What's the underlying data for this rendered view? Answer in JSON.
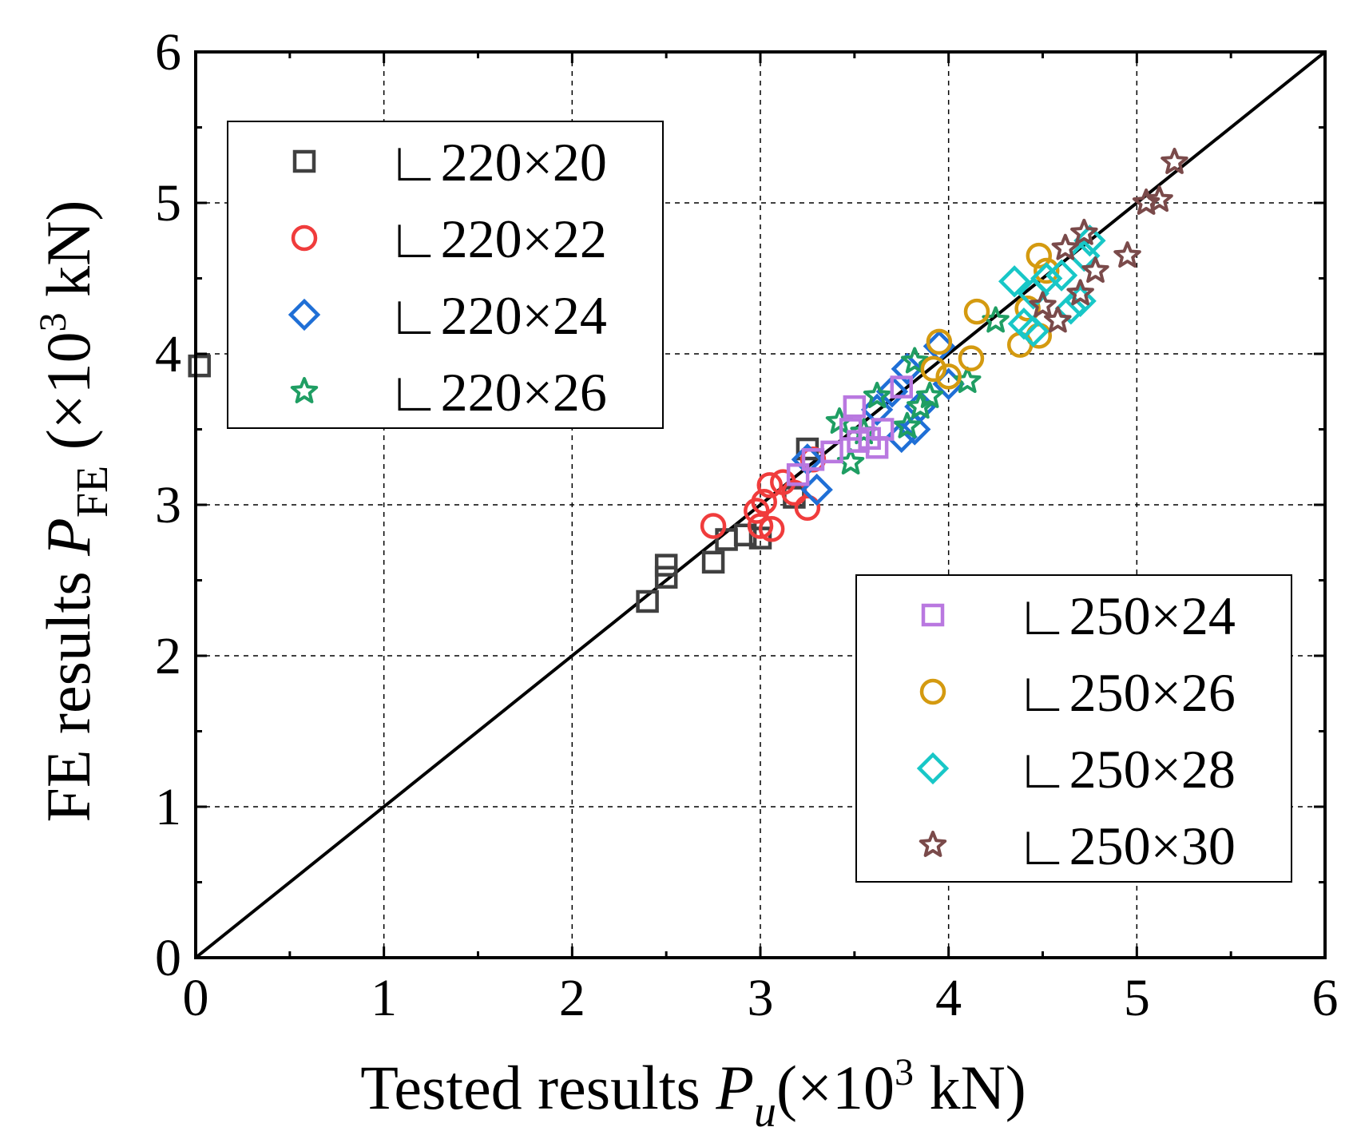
{
  "chart_data": {
    "type": "scatter",
    "xlabel": {
      "text": "Tested results ",
      "var": "P",
      "sub": "u",
      "unit": "(×10",
      "exp": "3",
      "unit_end": " kN)"
    },
    "ylabel": {
      "text": "FE results ",
      "var": "P",
      "sub": "FE",
      "unit": " (×10",
      "exp": "3",
      "unit_end": " kN)"
    },
    "xlim": [
      0,
      6
    ],
    "ylim": [
      0,
      6
    ],
    "x_ticks": [
      "0",
      "1",
      "2",
      "3",
      "4",
      "5",
      "6"
    ],
    "y_ticks": [
      "0",
      "1",
      "2",
      "3",
      "4",
      "5",
      "6"
    ],
    "grid": true,
    "reference_line": {
      "x": [
        0,
        6
      ],
      "y": [
        0,
        6
      ],
      "color": "#000000"
    },
    "legends": [
      {
        "placement": "top-left",
        "entries": [
          0,
          1,
          2,
          3
        ]
      },
      {
        "placement": "bottom-right",
        "entries": [
          4,
          5,
          6,
          7
        ]
      }
    ],
    "series": [
      {
        "name": "∟220×20",
        "marker": "square",
        "color": "#404040",
        "points": [
          [
            2.4,
            2.36
          ],
          [
            2.5,
            2.52
          ],
          [
            2.5,
            2.6
          ],
          [
            2.75,
            2.62
          ],
          [
            2.82,
            2.77
          ],
          [
            2.92,
            2.8
          ],
          [
            3.0,
            2.78
          ],
          [
            3.18,
            3.05
          ],
          [
            3.25,
            3.37
          ],
          [
            0.02,
            3.92
          ]
        ]
      },
      {
        "name": "∟220×22",
        "marker": "circle",
        "color": "#f03c3c",
        "points": [
          [
            2.75,
            2.86
          ],
          [
            2.98,
            2.96
          ],
          [
            3.0,
            2.86
          ],
          [
            3.02,
            3.02
          ],
          [
            3.05,
            3.13
          ],
          [
            3.06,
            2.84
          ],
          [
            3.12,
            3.15
          ],
          [
            3.18,
            3.08
          ],
          [
            3.25,
            2.98
          ],
          [
            3.28,
            3.3
          ]
        ]
      },
      {
        "name": "∟220×24",
        "marker": "diamond",
        "color": "#1f6fd6",
        "points": [
          [
            3.25,
            3.3
          ],
          [
            3.3,
            3.1
          ],
          [
            3.62,
            3.63
          ],
          [
            3.7,
            3.75
          ],
          [
            3.75,
            3.45
          ],
          [
            3.82,
            3.5
          ],
          [
            3.85,
            3.65
          ],
          [
            3.78,
            3.9
          ],
          [
            3.95,
            4.05
          ],
          [
            4.0,
            3.8
          ]
        ]
      },
      {
        "name": "∟220×26",
        "marker": "star",
        "color": "#1f9e63",
        "points": [
          [
            3.42,
            3.55
          ],
          [
            3.48,
            3.28
          ],
          [
            3.55,
            3.48
          ],
          [
            3.62,
            3.72
          ],
          [
            3.78,
            3.52
          ],
          [
            3.82,
            3.95
          ],
          [
            3.85,
            3.65
          ],
          [
            3.9,
            3.72
          ],
          [
            4.1,
            3.82
          ],
          [
            4.25,
            4.22
          ]
        ]
      },
      {
        "name": "∟250×24",
        "marker": "square",
        "color": "#b978e0",
        "points": [
          [
            3.2,
            3.2
          ],
          [
            3.28,
            3.3
          ],
          [
            3.38,
            3.35
          ],
          [
            3.48,
            3.5
          ],
          [
            3.5,
            3.65
          ],
          [
            3.52,
            3.42
          ],
          [
            3.58,
            3.44
          ],
          [
            3.62,
            3.38
          ],
          [
            3.65,
            3.5
          ],
          [
            3.75,
            3.78
          ]
        ]
      },
      {
        "name": "∟250×26",
        "marker": "circle",
        "color": "#d49a10",
        "points": [
          [
            3.92,
            3.9
          ],
          [
            3.95,
            4.08
          ],
          [
            4.0,
            3.85
          ],
          [
            4.12,
            3.97
          ],
          [
            4.15,
            4.28
          ],
          [
            4.38,
            4.06
          ],
          [
            4.42,
            4.3
          ],
          [
            4.48,
            4.12
          ],
          [
            4.48,
            4.65
          ],
          [
            4.52,
            4.55
          ]
        ]
      },
      {
        "name": "∟250×28",
        "marker": "diamond",
        "color": "#18c7c7",
        "points": [
          [
            4.35,
            4.48
          ],
          [
            4.4,
            4.2
          ],
          [
            4.45,
            4.4
          ],
          [
            4.52,
            4.5
          ],
          [
            4.6,
            4.52
          ],
          [
            4.65,
            4.3
          ],
          [
            4.7,
            4.35
          ],
          [
            4.72,
            4.65
          ],
          [
            4.75,
            4.75
          ],
          [
            4.45,
            4.15
          ]
        ]
      },
      {
        "name": "∟250×30",
        "marker": "star",
        "color": "#7a4a4a",
        "points": [
          [
            4.5,
            4.32
          ],
          [
            4.58,
            4.22
          ],
          [
            4.62,
            4.7
          ],
          [
            4.7,
            4.4
          ],
          [
            4.72,
            4.8
          ],
          [
            4.78,
            4.55
          ],
          [
            4.95,
            4.65
          ],
          [
            5.05,
            5.0
          ],
          [
            5.12,
            5.02
          ],
          [
            5.2,
            5.27
          ]
        ]
      }
    ]
  }
}
